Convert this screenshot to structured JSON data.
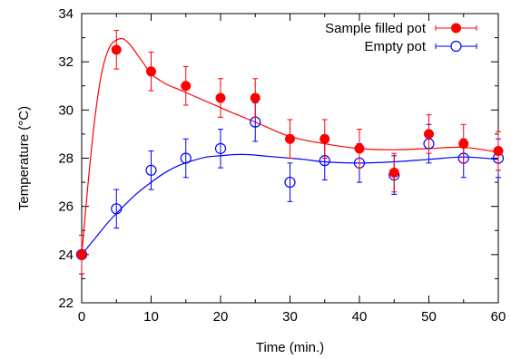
{
  "chart_data": {
    "type": "scatter",
    "xlabel": "Time (min.)",
    "ylabel": "Temperature (°C)",
    "xlim": [
      0,
      60
    ],
    "ylim": [
      22,
      34
    ],
    "xticks": [
      "0",
      "10",
      "20",
      "30",
      "40",
      "50",
      "60"
    ],
    "yticks": [
      "22",
      "24",
      "26",
      "28",
      "30",
      "32",
      "34"
    ],
    "grid": false,
    "legend_position": "top-right",
    "series": [
      {
        "name": "Sample filled pot",
        "color": "#ff0000",
        "marker": "filled-circle",
        "x": [
          0,
          5,
          10,
          15,
          20,
          25,
          30,
          35,
          40,
          45,
          50,
          55,
          60
        ],
        "y": [
          24.0,
          32.5,
          31.6,
          31.0,
          30.5,
          30.5,
          28.8,
          28.8,
          28.4,
          27.4,
          29.0,
          28.6,
          28.3
        ],
        "yerr": [
          0.8,
          0.8,
          0.8,
          0.8,
          0.8,
          0.8,
          0.8,
          0.8,
          0.8,
          0.8,
          0.8,
          0.8,
          0.8
        ],
        "fit_curve": {
          "x": [
            0,
            1,
            2,
            3,
            4,
            5,
            6,
            7,
            8,
            9,
            10,
            12,
            14,
            16,
            18,
            20,
            22,
            25,
            30,
            35,
            40,
            45,
            50,
            55,
            60
          ],
          "y": [
            24.0,
            27.2,
            29.9,
            31.7,
            32.6,
            32.9,
            32.95,
            32.7,
            32.3,
            31.9,
            31.5,
            31.1,
            30.85,
            30.6,
            30.35,
            30.1,
            29.85,
            29.5,
            28.9,
            28.6,
            28.4,
            28.35,
            28.4,
            28.45,
            28.25
          ]
        }
      },
      {
        "name": "Empty pot",
        "color": "#0000ff",
        "marker": "open-circle",
        "x": [
          0,
          5,
          10,
          15,
          20,
          25,
          30,
          35,
          40,
          45,
          50,
          55,
          60
        ],
        "y": [
          24.0,
          25.9,
          27.5,
          28.0,
          28.4,
          29.5,
          27.0,
          27.9,
          27.8,
          27.3,
          28.6,
          28.0,
          28.0
        ],
        "yerr": [
          0.8,
          0.8,
          0.8,
          0.8,
          0.8,
          0.8,
          0.8,
          0.8,
          0.8,
          0.8,
          0.8,
          0.8,
          0.8
        ],
        "fit_curve": {
          "x": [
            0,
            2,
            4,
            6,
            8,
            10,
            12,
            14,
            16,
            18,
            20,
            22,
            24,
            26,
            28,
            30,
            32,
            35,
            40,
            45,
            50,
            55,
            60
          ],
          "y": [
            24.0,
            24.7,
            25.4,
            26.0,
            26.55,
            27.0,
            27.4,
            27.7,
            27.9,
            28.05,
            28.1,
            28.15,
            28.15,
            28.1,
            28.05,
            28.0,
            27.95,
            27.85,
            27.8,
            27.85,
            27.95,
            28.05,
            27.95
          ]
        }
      }
    ]
  }
}
